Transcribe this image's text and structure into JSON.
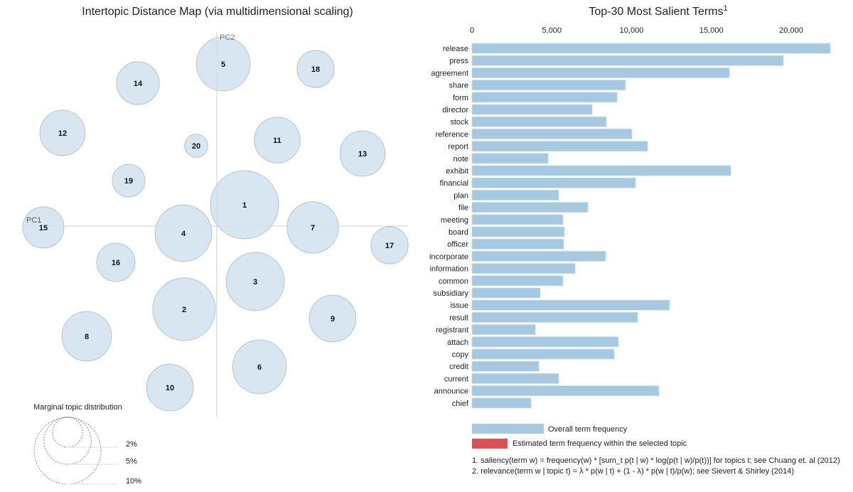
{
  "chart_data": [
    {
      "type": "scatter",
      "title": "Intertopic Distance Map (via multidimensional scaling)",
      "xlabel": "PC1",
      "ylabel": "PC2",
      "grid": false,
      "marker_color": "#d3e3ef",
      "topics": [
        {
          "label": "1",
          "pc1": 0.039,
          "pc2": 0.03,
          "marginal_pct": 10.4
        },
        {
          "label": "2",
          "pc1": -0.046,
          "pc2": -0.117,
          "marginal_pct": 8.8
        },
        {
          "label": "3",
          "pc1": 0.054,
          "pc2": -0.078,
          "marginal_pct": 7.6
        },
        {
          "label": "4",
          "pc1": -0.047,
          "pc2": -0.01,
          "marginal_pct": 7.2
        },
        {
          "label": "5",
          "pc1": 0.009,
          "pc2": 0.228,
          "marginal_pct": 6.5
        },
        {
          "label": "6",
          "pc1": 0.06,
          "pc2": -0.198,
          "marginal_pct": 6.5
        },
        {
          "label": "7",
          "pc1": 0.135,
          "pc2": -0.002,
          "marginal_pct": 5.9
        },
        {
          "label": "8",
          "pc1": -0.183,
          "pc2": -0.155,
          "marginal_pct": 5.5
        },
        {
          "label": "9",
          "pc1": 0.163,
          "pc2": -0.13,
          "marginal_pct": 4.9
        },
        {
          "label": "10",
          "pc1": -0.066,
          "pc2": -0.227,
          "marginal_pct": 4.9
        },
        {
          "label": "11",
          "pc1": 0.085,
          "pc2": 0.121,
          "marginal_pct": 4.7
        },
        {
          "label": "12",
          "pc1": -0.217,
          "pc2": 0.131,
          "marginal_pct": 4.6
        },
        {
          "label": "13",
          "pc1": 0.205,
          "pc2": 0.102,
          "marginal_pct": 4.6
        },
        {
          "label": "14",
          "pc1": -0.111,
          "pc2": 0.201,
          "marginal_pct": 4.1
        },
        {
          "label": "15",
          "pc1": -0.244,
          "pc2": -0.002,
          "marginal_pct": 3.8
        },
        {
          "label": "16",
          "pc1": -0.142,
          "pc2": -0.051,
          "marginal_pct": 3.3
        },
        {
          "label": "17",
          "pc1": 0.243,
          "pc2": -0.027,
          "marginal_pct": 3.1
        },
        {
          "label": "18",
          "pc1": 0.139,
          "pc2": 0.221,
          "marginal_pct": 3.1
        },
        {
          "label": "19",
          "pc1": -0.124,
          "pc2": 0.064,
          "marginal_pct": 2.4
        },
        {
          "label": "20",
          "pc1": -0.029,
          "pc2": 0.113,
          "marginal_pct": 1.2
        }
      ],
      "size_legend": {
        "title": "Marginal topic distribution",
        "entries": [
          {
            "label": "2%",
            "value": 2
          },
          {
            "label": "5%",
            "value": 5
          },
          {
            "label": "10%",
            "value": 10
          }
        ]
      }
    },
    {
      "type": "bar",
      "orientation": "horizontal",
      "title": "Top-30 Most Salient Terms",
      "title_superscript": "1",
      "xlim": [
        0,
        22500
      ],
      "xticks": [
        0,
        5000,
        10000,
        15000,
        20000
      ],
      "xtick_labels": [
        "0",
        "5,000",
        "10,000",
        "15,000",
        "20,000"
      ],
      "bar_color": "#a6c8e0",
      "categories": [
        "release",
        "press",
        "agreement",
        "share",
        "form",
        "director",
        "stock",
        "reference",
        "report",
        "note",
        "exhibit",
        "financial",
        "plan",
        "file",
        "meeting",
        "board",
        "officer",
        "incorporate",
        "information",
        "common",
        "subsidiary",
        "issue",
        "result",
        "registrant",
        "attach",
        "copy",
        "credit",
        "current",
        "announce",
        "chief"
      ],
      "values": [
        22450,
        19510,
        16125,
        9620,
        9090,
        7530,
        8420,
        10020,
        11000,
        4770,
        16210,
        10245,
        5430,
        7260,
        5700,
        5790,
        5745,
        8375,
        6460,
        5700,
        4275,
        12380,
        10380,
        3965,
        9175,
        8910,
        4190,
        5430,
        11715,
        3700
      ],
      "legend": [
        {
          "label": "Overall term frequency",
          "color": "#a6c8e0"
        },
        {
          "label": "Estimated term frequency within the selected topic",
          "color": "#dc5254"
        }
      ],
      "footnotes": [
        "1. saliency(term w) = frequency(w) * [sum_t p(t | w) * log(p(t | w)/p(t))] for topics t; see Chuang et. al (2012)",
        "2. relevance(term w | topic t) = λ * p(w | t) + (1 - λ) * p(w | t)/p(w); see Sievert & Shirley (2014)"
      ]
    }
  ]
}
